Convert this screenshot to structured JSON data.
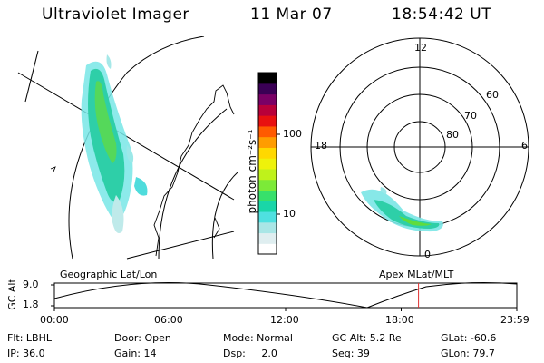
{
  "header": {
    "instrument": "Ultraviolet Imager",
    "date": "11 Mar 07",
    "time": "18:54:42 UT"
  },
  "geo_panel": {
    "label": "Geographic Lat/Lon"
  },
  "apex_panel": {
    "label": "Apex MLat/MLT",
    "mlt_labels": {
      "top": "12",
      "left": "18",
      "right": "6",
      "bottom": "0"
    },
    "lat_labels": [
      "60",
      "70",
      "80"
    ]
  },
  "colorbar": {
    "unit_label": "photon cm⁻²s⁻¹",
    "tick_labels": [
      "100",
      "10"
    ],
    "colors": [
      "#ffffff",
      "#dfeef0",
      "#a9e6e6",
      "#4fe0e0",
      "#19d6a8",
      "#37e06b",
      "#7cea38",
      "#bff21b",
      "#eef20b",
      "#ffd800",
      "#ff9c00",
      "#ff5a00",
      "#e81010",
      "#b8003a",
      "#7a0066",
      "#3a0055",
      "#000000"
    ]
  },
  "altitude_track": {
    "ylabel": "GC Alt",
    "y_ticks": [
      "9.0",
      "1.8"
    ],
    "x_ticks": [
      "00:00",
      "06:00",
      "12:00",
      "18:00",
      "23:59"
    ],
    "current_time_marker": 18.9
  },
  "info_rows": {
    "flt": "Flt: LBHL",
    "door": "Door: Open",
    "mode": "Mode: Normal",
    "gc_alt": "GC Alt: 5.2 Re",
    "glat": "GLat: -60.6",
    "ip": "IP: 36.0",
    "gain": "Gain: 14",
    "dsp": "Dsp:     2.0",
    "seq": "Seq: 39",
    "glon": "GLon: 79.7"
  }
}
